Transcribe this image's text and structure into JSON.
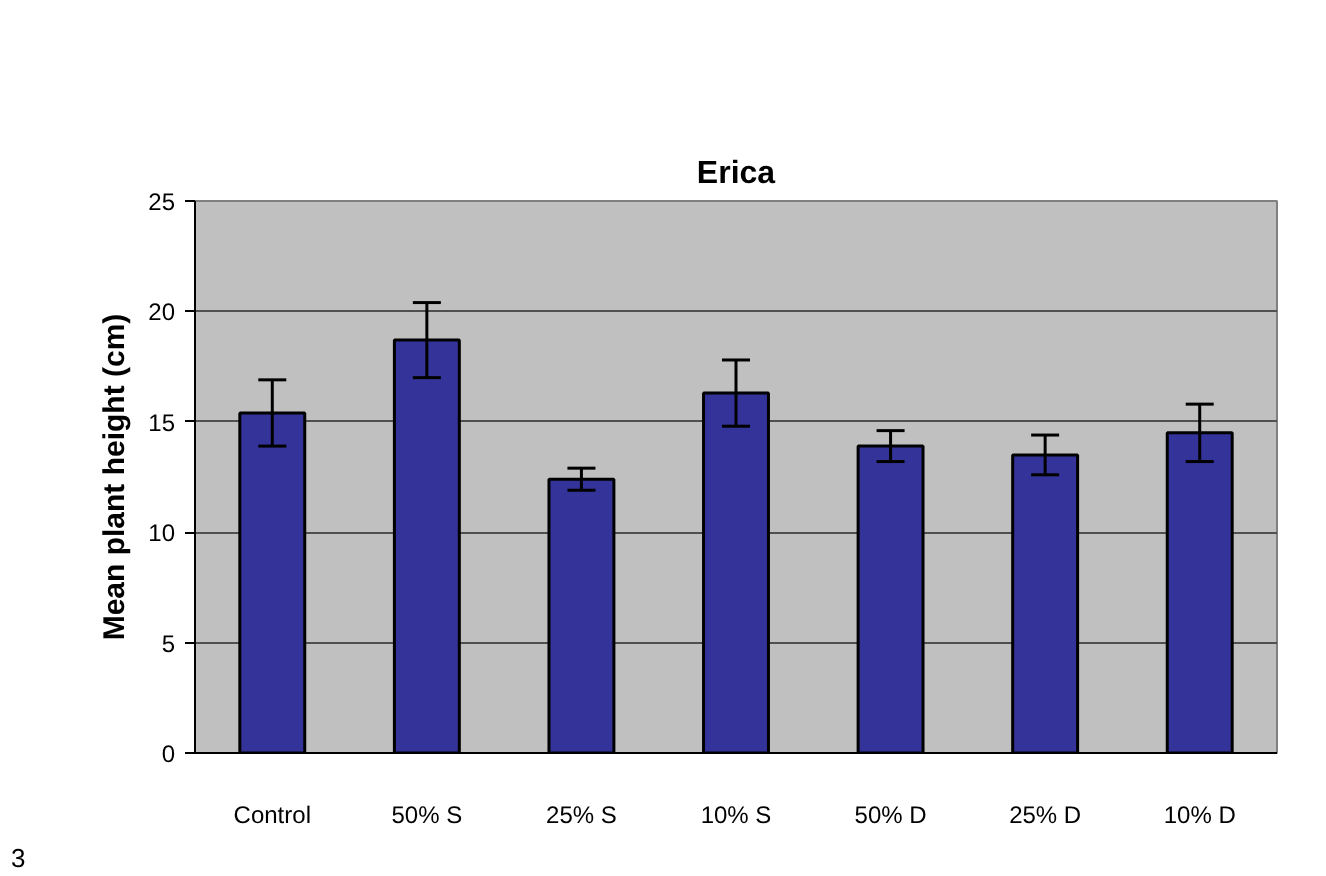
{
  "chart_data": {
    "type": "bar",
    "title": "Erica",
    "ylabel": "Mean plant height (cm)",
    "categories": [
      "Control",
      "50% S",
      "25% S",
      "10% S",
      "50% D",
      "25% D",
      "10% D"
    ],
    "values": [
      15.4,
      18.7,
      12.4,
      16.3,
      13.9,
      13.5,
      14.5
    ],
    "errors": [
      1.5,
      1.7,
      0.5,
      1.5,
      0.7,
      0.9,
      1.3
    ],
    "color": "#333399",
    "ylim": [
      0,
      25
    ],
    "yticks": [
      0,
      5,
      10,
      15,
      20,
      25
    ],
    "grid": "y",
    "annotations": [
      "3"
    ]
  }
}
